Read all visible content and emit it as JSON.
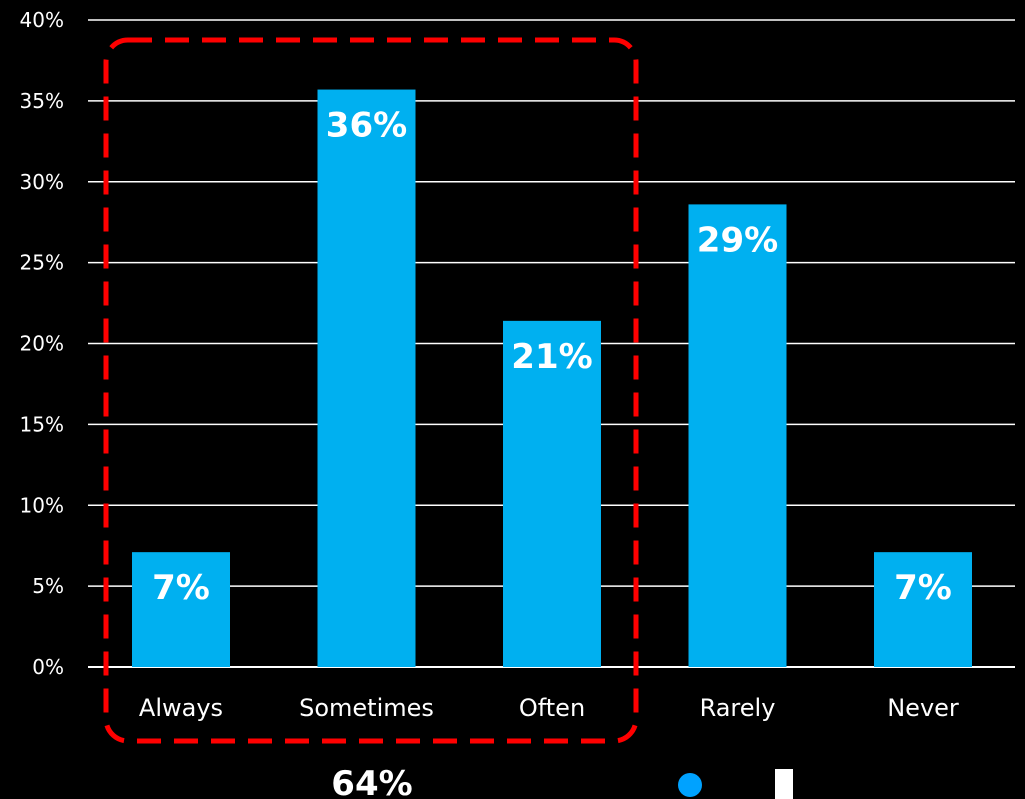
{
  "chart_data": {
    "type": "bar",
    "categories": [
      "Always",
      "Sometimes",
      "Often",
      "Rarely",
      "Never"
    ],
    "values": [
      7.1,
      35.7,
      21.4,
      28.6,
      7.1
    ],
    "data_labels": [
      "7%",
      "36%",
      "21%",
      "29%",
      "7%"
    ],
    "ylim": [
      0,
      40
    ],
    "y_ticks": [
      0,
      5,
      10,
      15,
      20,
      25,
      30,
      35,
      40
    ],
    "y_tick_labels": [
      "0%",
      "5%",
      "10%",
      "15%",
      "20%",
      "25%",
      "30%",
      "35%",
      "40%"
    ],
    "grid": true,
    "bar_color": "#00b0f0",
    "highlight": {
      "categories": [
        "Always",
        "Sometimes",
        "Often"
      ],
      "style": "dashed-rounded-box",
      "color": "#ff0000",
      "total_label": "64%"
    },
    "legend": {
      "position": "bottom",
      "entries": [
        {
          "marker": "circle",
          "color": "#00a2ff"
        },
        {
          "marker": "square",
          "color": "#ffffff"
        }
      ]
    }
  }
}
